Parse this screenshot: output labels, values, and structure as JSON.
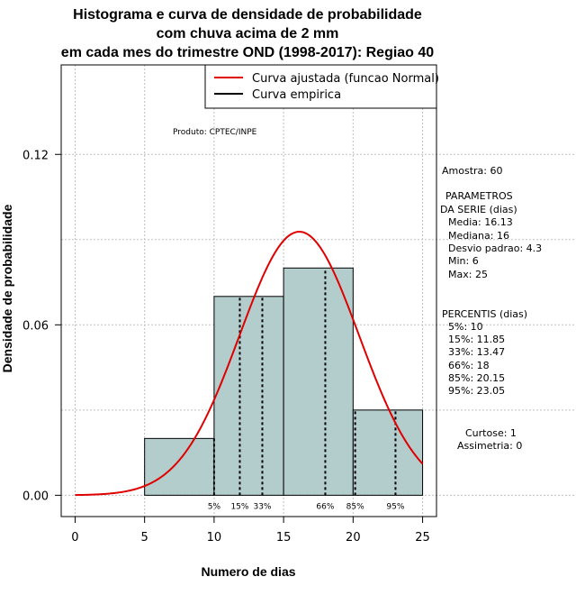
{
  "chart_data": {
    "type": "bar",
    "title_lines": [
      "Histograma e curva de densidade de probabilidade",
      "com chuva acima de 2 mm",
      "em cada mes do trimestre OND (1998-2017): Regiao 40"
    ],
    "xlabel": "Numero de dias",
    "ylabel": "Densidade de probabilidade",
    "xlim": [
      -1,
      26
    ],
    "ylim": [
      -0.0075,
      0.1515
    ],
    "x_ticks": [
      0,
      5,
      10,
      15,
      20,
      25
    ],
    "x_tick_labels": [
      "0",
      "5",
      "10",
      "15",
      "20",
      "25"
    ],
    "y_ticks": [
      0.0,
      0.06,
      0.12
    ],
    "y_tick_labels": [
      "0.00",
      "0.06",
      "0.12"
    ],
    "grid": true,
    "bins": [
      {
        "start": 5,
        "end": 10,
        "density": 0.02
      },
      {
        "start": 10,
        "end": 15,
        "density": 0.07
      },
      {
        "start": 15,
        "end": 20,
        "density": 0.08
      },
      {
        "start": 20,
        "end": 25,
        "density": 0.03
      }
    ],
    "bar_color": "#b3cccc",
    "normal_curve": {
      "mean": 16.13,
      "sd": 4.3,
      "color": "#e00000",
      "x_range": [
        0,
        25
      ]
    },
    "percentile_lines": [
      {
        "label": "5%",
        "value": 10
      },
      {
        "label": "15%",
        "value": 11.85
      },
      {
        "label": "33%",
        "value": 13.47
      },
      {
        "label": "66%",
        "value": 18
      },
      {
        "label": "85%",
        "value": 20.15
      },
      {
        "label": "95%",
        "value": 23.05
      }
    ],
    "legend": {
      "position": "top-right",
      "entries": [
        {
          "label": "Curva ajustada (funcao Normal)",
          "color": "#e00000"
        },
        {
          "label": "Curva empirica",
          "color": "#000000"
        }
      ]
    },
    "annotation": "Produto: CPTEC/INPE"
  },
  "side_panel": {
    "amostra": "Amostra: 60",
    "param_title_1": "PARAMETROS",
    "param_title_2": "DA SERIE (dias)",
    "media": "Media: 16.13",
    "mediana": "Mediana: 16",
    "desvio": "Desvio padrao: 4.3",
    "min": "Min: 6",
    "max": "Max: 25",
    "percentis_title": "PERCENTIS (dias)",
    "p5": "5%: 10",
    "p15": "15%: 11.85",
    "p33": "33%: 13.47",
    "p66": "66%: 18",
    "p85": "85%: 20.15",
    "p95": "95%: 23.05",
    "curtose": "Curtose: 1",
    "assimetria": "Assimetria: 0"
  }
}
